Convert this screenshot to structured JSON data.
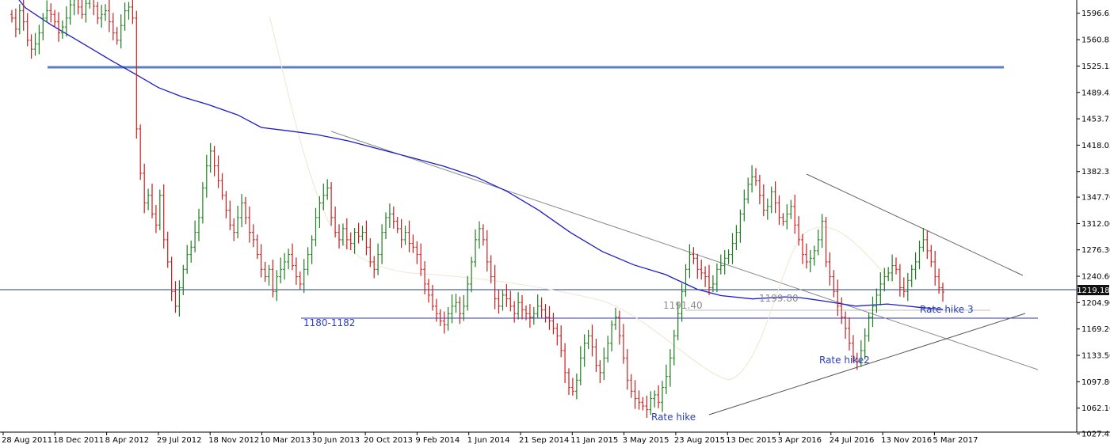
{
  "chart_data": {
    "type": "ohlc",
    "y_ticks": [
      "1596.65",
      "1560.85",
      "1525.15",
      "1489.45",
      "1453.75",
      "1418.05",
      "1382.35",
      "1347.70",
      "1312.00",
      "1276.30",
      "1240.60",
      "1204.90",
      "1169.20",
      "1133.50",
      "1097.80",
      "1062.10",
      "1027.45"
    ],
    "ylim": [
      1010,
      1620
    ],
    "x_ticks": [
      "28 Aug 2011",
      "18 Dec 2011",
      "8 Apr 2012",
      "29 Jul 2012",
      "18 Nov 2012",
      "10 Mar 2013",
      "30 Jun 2013",
      "20 Oct 2013",
      "9 Feb 2014",
      "1 Jun 2014",
      "21 Sep 2014",
      "11 Jan 2015",
      "3 May 2015",
      "23 Aug 2015",
      "13 Dec 2015",
      "3 Apr 2016",
      "24 Jul 2016",
      "13 Nov 2016",
      "5 Mar 2017"
    ],
    "current_price": "1219.18",
    "grid": false,
    "closes": [
      1590,
      1575,
      1600,
      1585,
      1560,
      1548,
      1555,
      1570,
      1590,
      1600,
      1595,
      1585,
      1570,
      1578,
      1590,
      1608,
      1615,
      1605,
      1595,
      1610,
      1618,
      1606,
      1590,
      1595,
      1600,
      1585,
      1570,
      1560,
      1580,
      1600,
      1605,
      1590,
      1440,
      1380,
      1340,
      1350,
      1325,
      1310,
      1350,
      1290,
      1260,
      1220,
      1200,
      1225,
      1250,
      1270,
      1280,
      1300,
      1320,
      1360,
      1390,
      1410,
      1390,
      1370,
      1350,
      1330,
      1310,
      1300,
      1320,
      1340,
      1320,
      1300,
      1290,
      1270,
      1250,
      1240,
      1250,
      1220,
      1240,
      1250,
      1260,
      1270,
      1255,
      1240,
      1230,
      1250,
      1270,
      1290,
      1320,
      1340,
      1350,
      1360,
      1320,
      1300,
      1290,
      1305,
      1290,
      1285,
      1300,
      1295,
      1300,
      1280,
      1260,
      1250,
      1270,
      1300,
      1320,
      1325,
      1315,
      1305,
      1290,
      1300,
      1285,
      1280,
      1270,
      1250,
      1230,
      1215,
      1200,
      1190,
      1180,
      1175,
      1190,
      1200,
      1205,
      1190,
      1200,
      1230,
      1260,
      1290,
      1305,
      1290,
      1260,
      1240,
      1210,
      1200,
      1215,
      1210,
      1200,
      1190,
      1205,
      1195,
      1190,
      1185,
      1190,
      1200,
      1195,
      1185,
      1180,
      1170,
      1160,
      1140,
      1110,
      1090,
      1085,
      1100,
      1130,
      1150,
      1160,
      1145,
      1120,
      1110,
      1130,
      1150,
      1175,
      1185,
      1160,
      1130,
      1100,
      1085,
      1075,
      1070,
      1065,
      1060,
      1075,
      1080,
      1070,
      1090,
      1105,
      1130,
      1160,
      1190,
      1220,
      1250,
      1270,
      1265,
      1250,
      1245,
      1240,
      1225,
      1230,
      1250,
      1255,
      1265,
      1270,
      1285,
      1300,
      1325,
      1345,
      1365,
      1375,
      1370,
      1350,
      1330,
      1335,
      1355,
      1340,
      1320,
      1315,
      1325,
      1335,
      1310,
      1290,
      1270,
      1260,
      1265,
      1275,
      1290,
      1315,
      1260,
      1240,
      1220,
      1200,
      1185,
      1170,
      1150,
      1130,
      1125,
      1140,
      1160,
      1185,
      1200,
      1215,
      1230,
      1240,
      1245,
      1255,
      1250,
      1225,
      1220,
      1235,
      1250,
      1260,
      1280,
      1290,
      1275,
      1260,
      1240,
      1225,
      1219.18
    ],
    "moving_average": [
      [
        0,
        1315
      ],
      [
        32,
        1240
      ],
      [
        64,
        1200
      ],
      [
        100,
        1160
      ],
      [
        140,
        1115
      ],
      [
        170,
        1083
      ],
      [
        200,
        1050
      ],
      [
        230,
        1028
      ],
      [
        262,
        1010
      ],
      [
        300,
        985
      ],
      [
        330,
        955
      ],
      [
        360,
        948
      ],
      [
        400,
        938
      ],
      [
        440,
        923
      ],
      [
        480,
        903
      ],
      [
        520,
        883
      ],
      [
        560,
        863
      ],
      [
        600,
        838
      ],
      [
        640,
        803
      ],
      [
        680,
        758
      ],
      [
        720,
        705
      ],
      [
        760,
        660
      ],
      [
        800,
        628
      ],
      [
        840,
        605
      ],
      [
        880,
        570
      ],
      [
        910,
        555
      ],
      [
        950,
        547
      ],
      [
        990,
        552
      ],
      [
        1010,
        550
      ],
      [
        1040,
        542
      ],
      [
        1080,
        530
      ],
      [
        1120,
        535
      ],
      [
        1160,
        527
      ],
      [
        1190,
        522
      ]
    ],
    "annotations": [
      {
        "text": "1180-1182",
        "color": "#2b3fb4"
      },
      {
        "text": "1191.40",
        "color": "#8c8c8c"
      },
      {
        "text": "1199.80",
        "color": "#8c8c8c"
      },
      {
        "text": "Rate hike",
        "color": "#2b3fb4"
      },
      {
        "text": "Rate hike2",
        "color": "#2b3fb4"
      },
      {
        "text": "Rate hike 3",
        "color": "#2b3fb4"
      }
    ],
    "colors": {
      "bull": "#1e7d1e",
      "bear": "#c81e1e",
      "moving_average": "#1c1cc8",
      "resistance": "#5b7fc4",
      "support": "#3535c8",
      "trendline": "#8a8a8a",
      "price_line": "#1e3b8a"
    }
  }
}
